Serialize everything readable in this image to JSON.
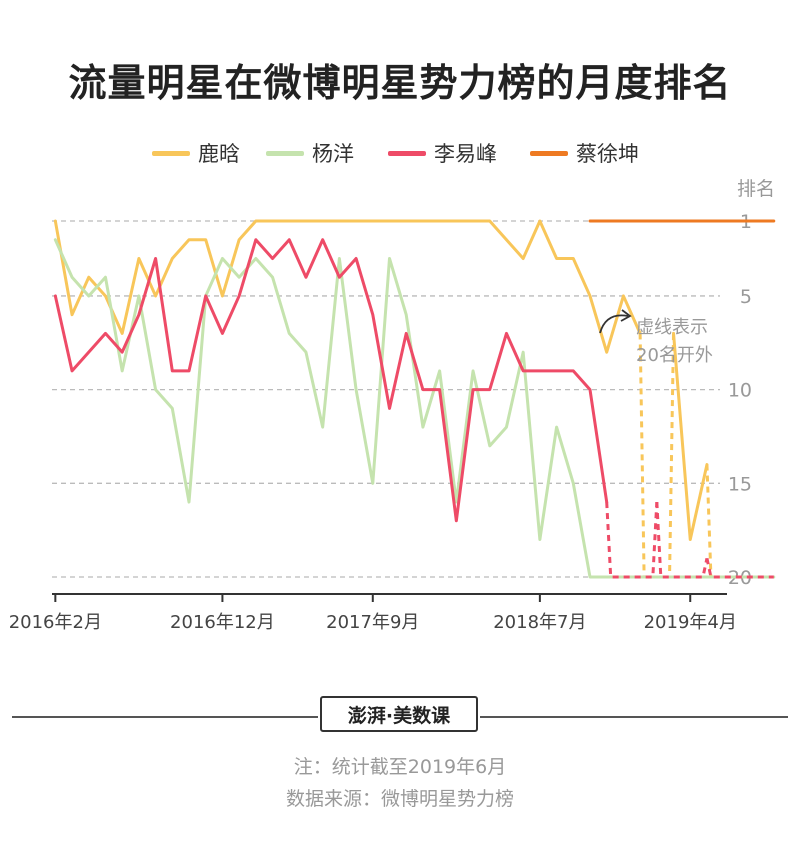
{
  "title": "流量明星在微博明星势力榜的月度排名",
  "legend": [
    {
      "label": "鹿晗",
      "color": "#F8C65A"
    },
    {
      "label": "杨洋",
      "color": "#C5E3AE"
    },
    {
      "label": "李易峰",
      "color": "#EE4B67"
    },
    {
      "label": "蔡徐坤",
      "color": "#EE7A22"
    }
  ],
  "annotation": {
    "line1": "虚线表示",
    "line2": "20名开外"
  },
  "brand": {
    "text": "澎湃·美数课"
  },
  "notes": {
    "note": "注：统计截至2019年6月",
    "source": "数据来源：微博明星势力榜"
  },
  "chart_data": {
    "type": "line",
    "title": "流量明星在微博明星势力榜的月度排名",
    "ylabel": "排名",
    "y_reversed": true,
    "ylim": [
      1,
      20
    ],
    "yticks": [
      1,
      5,
      10,
      15,
      20
    ],
    "xticks": [
      {
        "label": "2016年2月",
        "index": 0
      },
      {
        "label": "2016年12月",
        "index": 10
      },
      {
        "label": "2017年9月",
        "index": 19
      },
      {
        "label": "2018年7月",
        "index": 29
      },
      {
        "label": "2019年4月",
        "index": 38
      }
    ],
    "x_range": [
      -0.2,
      40.2
    ],
    "grid": "horizontal-dashed",
    "note": "null = 20名开外 (dashed segment at 20)",
    "series": [
      {
        "name": "鹿晗",
        "color": "#F8C65A",
        "values": [
          1,
          6,
          4,
          5,
          7,
          3,
          5,
          3,
          2,
          2,
          5,
          2,
          1,
          1,
          1,
          1,
          1,
          1,
          1,
          1,
          1,
          1,
          1,
          1,
          1,
          1,
          1,
          2,
          3,
          1,
          3,
          3,
          5,
          8,
          5,
          7,
          null,
          7,
          18,
          14,
          null,
          null,
          null,
          null
        ]
      },
      {
        "name": "杨洋",
        "color": "#C5E3AE",
        "values": [
          2,
          4,
          5,
          4,
          9,
          5,
          10,
          11,
          16,
          5,
          3,
          4,
          3,
          4,
          7,
          8,
          12,
          3,
          10,
          15,
          3,
          6,
          12,
          9,
          16,
          9,
          13,
          12,
          8,
          18,
          12,
          15,
          20,
          20,
          20,
          20,
          20,
          20,
          20,
          20,
          20,
          20,
          20,
          20
        ]
      },
      {
        "name": "李易峰",
        "color": "#EE4B67",
        "values": [
          5,
          9,
          8,
          7,
          8,
          6,
          3,
          9,
          9,
          5,
          7,
          5,
          2,
          3,
          2,
          4,
          2,
          4,
          3,
          6,
          11,
          7,
          10,
          10,
          17,
          10,
          10,
          7,
          9,
          9,
          9,
          9,
          10,
          16,
          null,
          null,
          16,
          null,
          null,
          19,
          null,
          null,
          null,
          null
        ]
      },
      {
        "name": "蔡徐坤",
        "color": "#EE7A22",
        "values": [
          null,
          null,
          null,
          null,
          null,
          null,
          null,
          null,
          null,
          null,
          null,
          null,
          null,
          null,
          null,
          null,
          null,
          null,
          null,
          null,
          null,
          null,
          null,
          null,
          null,
          null,
          null,
          null,
          null,
          null,
          null,
          null,
          1,
          1,
          1,
          1,
          1,
          1,
          1,
          1,
          1,
          1,
          1,
          1
        ]
      }
    ]
  }
}
